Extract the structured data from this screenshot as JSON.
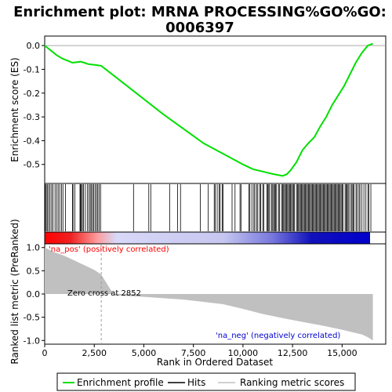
{
  "title_line1": "Enrichment plot: MRNA PROCESSING%GO%GO:",
  "title_line2": "0006397",
  "ylabel_top": "Enrichment score (ES)",
  "ylabel_bottom": "Ranked list metric (PreRanked)",
  "xlabel": "Rank in Ordered Dataset",
  "annotations": {
    "pos": "'na_pos' (positively correlated)",
    "neg": "'na_neg' (negatively correlated)",
    "zero_cross": "Zero cross at 2852"
  },
  "legend": {
    "profile": "Enrichment profile",
    "hits": "Hits",
    "metric": "Ranking metric scores"
  },
  "colors": {
    "profile": "#00e000",
    "hits": "#000000",
    "metric_fill": "#c0c0c0",
    "pos_annotation": "#ff0000",
    "neg_annotation": "#0000cc"
  },
  "chart_data": {
    "type": "line",
    "x_range": [
      0,
      17200
    ],
    "x_ticks": [
      0,
      2500,
      5000,
      7500,
      10000,
      12500,
      15000
    ],
    "x_tick_labels": [
      "0",
      "2,500",
      "5,000",
      "7,500",
      "10,000",
      "12,500",
      "15,000"
    ],
    "zero_cross": 2852,
    "es_ylim": [
      -0.58,
      0.04
    ],
    "es_ticks": [
      0.0,
      -0.1,
      -0.2,
      -0.3,
      -0.4,
      -0.5
    ],
    "es_tick_labels": [
      "0.0",
      "-0.1",
      "-0.2",
      "-0.3",
      "-0.4",
      "-0.5"
    ],
    "es_profile": {
      "x": [
        0,
        300,
        600,
        900,
        1200,
        1400,
        1600,
        1800,
        2000,
        2200,
        2400,
        2600,
        2850,
        4000,
        6000,
        8000,
        9000,
        10000,
        10500,
        11000,
        11500,
        12000,
        12200,
        12400,
        12700,
        13000,
        13300,
        13600,
        13900,
        14200,
        14500,
        14800,
        15100,
        15400,
        15700,
        16000,
        16300,
        16550
      ],
      "y": [
        0.0,
        -0.02,
        -0.04,
        -0.055,
        -0.065,
        -0.072,
        -0.07,
        -0.068,
        -0.072,
        -0.078,
        -0.08,
        -0.082,
        -0.085,
        -0.16,
        -0.29,
        -0.41,
        -0.455,
        -0.5,
        -0.52,
        -0.53,
        -0.54,
        -0.548,
        -0.542,
        -0.525,
        -0.49,
        -0.44,
        -0.41,
        -0.385,
        -0.34,
        -0.3,
        -0.25,
        -0.21,
        -0.17,
        -0.12,
        -0.07,
        -0.03,
        0.0,
        0.008
      ]
    },
    "hits": [
      30,
      80,
      130,
      200,
      270,
      350,
      420,
      520,
      600,
      680,
      760,
      850,
      920,
      1050,
      1400,
      1430,
      1520,
      1780,
      1810,
      1850,
      1900,
      1960,
      2050,
      2150,
      2230,
      2300,
      2360,
      2420,
      2480,
      2550,
      2620,
      2680,
      2750,
      2820,
      4480,
      5250,
      5350,
      6300,
      6700,
      6850,
      7850,
      8250,
      8550,
      8600,
      8700,
      8800,
      8850,
      8950,
      9000,
      9450,
      9600,
      9850,
      9900,
      10300,
      10350,
      10450,
      10550,
      10600,
      10700,
      10750,
      10850,
      10900,
      11000,
      11050,
      11200,
      11250,
      11300,
      11350,
      11450,
      11500,
      11550,
      11600,
      11650,
      11700,
      11800,
      11850,
      11950,
      12000,
      12050,
      12100,
      12150,
      12200,
      12250,
      12300,
      12350,
      12400,
      12450,
      12500,
      12550,
      12600,
      12700,
      12750,
      12800,
      12850,
      12900,
      12950,
      13000,
      13050,
      13100,
      13150,
      13200,
      13250,
      13300,
      13350,
      13400,
      13450,
      13500,
      13550,
      13600,
      13650,
      13700,
      13750,
      13800,
      13850,
      13900,
      13950,
      14000,
      14050,
      14100,
      14150,
      14200,
      14250,
      14300,
      14350,
      14400,
      14450,
      14500,
      14550,
      14600,
      14650,
      14700,
      14750,
      14800,
      14850,
      14900,
      14950,
      15000,
      15050,
      15150,
      15200,
      15250,
      15300,
      15350,
      15450,
      15500,
      15550,
      15600,
      15700,
      15750,
      15850,
      15900,
      16000,
      16100,
      16200,
      16300,
      16350,
      16450
    ],
    "metric_ylim": [
      -1.08,
      1.08
    ],
    "metric_ticks": [
      1.0,
      0.5,
      0.0,
      -0.5,
      -1.0
    ],
    "metric_tick_labels": [
      "1.0",
      "0.5",
      "0.0",
      "-0.5",
      "-1.0"
    ],
    "metric_curve": {
      "x": [
        0,
        200,
        500,
        1000,
        1500,
        2000,
        2500,
        2852,
        3500,
        5000,
        7000,
        9000,
        10000,
        11000,
        12000,
        13000,
        14000,
        15000,
        15500,
        16000,
        16300,
        16550
      ],
      "y": [
        1.0,
        0.96,
        0.9,
        0.82,
        0.72,
        0.62,
        0.52,
        0.42,
        -0.03,
        -0.06,
        -0.12,
        -0.22,
        -0.32,
        -0.43,
        -0.52,
        -0.6,
        -0.68,
        -0.77,
        -0.82,
        -0.87,
        -0.93,
        -1.0
      ]
    }
  }
}
